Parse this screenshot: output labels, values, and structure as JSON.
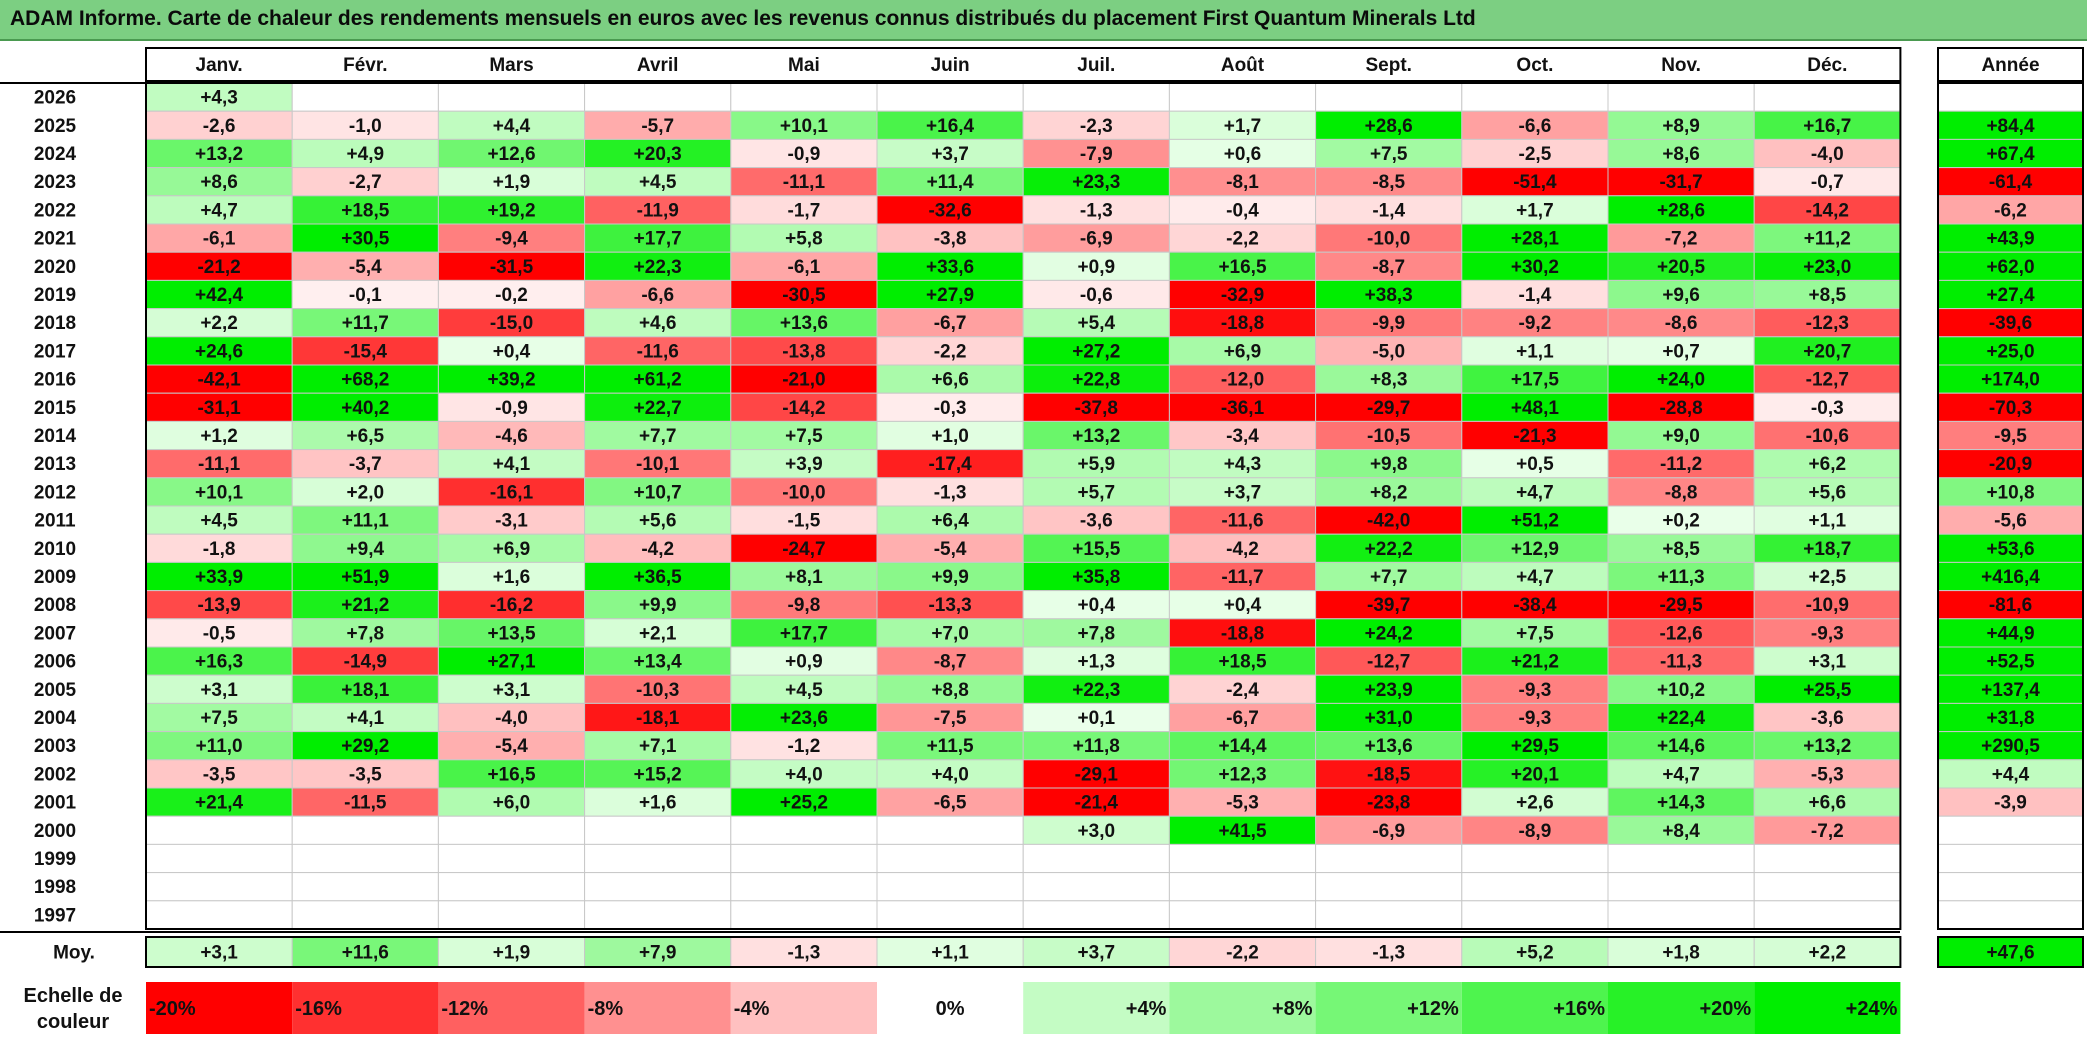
{
  "title": "ADAM Informe. Carte de chaleur des rendements mensuels en euros avec les revenus connus distribués du placement First Quantum Minerals Ltd",
  "chart_data": {
    "type": "heatmap",
    "title": "ADAM Informe. Carte de chaleur des rendements mensuels en euros avec les revenus connus distribués du placement First Quantum Minerals Ltd",
    "columns": [
      "Janv.",
      "Févr.",
      "Mars",
      "Avril",
      "Mai",
      "Juin",
      "Juil.",
      "Août",
      "Sept.",
      "Oct.",
      "Nov.",
      "Déc."
    ],
    "year_column_label": "Année",
    "rows": [
      {
        "year": "2026",
        "values": [
          "+4,3",
          "",
          "",
          "",
          "",
          "",
          "",
          "",
          "",
          "",
          "",
          ""
        ],
        "annual": ""
      },
      {
        "year": "2025",
        "values": [
          "-2,6",
          "-1,0",
          "+4,4",
          "-5,7",
          "+10,1",
          "+16,4",
          "-2,3",
          "+1,7",
          "+28,6",
          "-6,6",
          "+8,9",
          "+16,7"
        ],
        "annual": "+84,4"
      },
      {
        "year": "2024",
        "values": [
          "+13,2",
          "+4,9",
          "+12,6",
          "+20,3",
          "-0,9",
          "+3,7",
          "-7,9",
          "+0,6",
          "+7,5",
          "-2,5",
          "+8,6",
          "-4,0"
        ],
        "annual": "+67,4"
      },
      {
        "year": "2023",
        "values": [
          "+8,6",
          "-2,7",
          "+1,9",
          "+4,5",
          "-11,1",
          "+11,4",
          "+23,3",
          "-8,1",
          "-8,5",
          "-51,4",
          "-31,7",
          "-0,7"
        ],
        "annual": "-61,4"
      },
      {
        "year": "2022",
        "values": [
          "+4,7",
          "+18,5",
          "+19,2",
          "-11,9",
          "-1,7",
          "-32,6",
          "-1,3",
          "-0,4",
          "-1,4",
          "+1,7",
          "+28,6",
          "-14,2"
        ],
        "annual": "-6,2"
      },
      {
        "year": "2021",
        "values": [
          "-6,1",
          "+30,5",
          "-9,4",
          "+17,7",
          "+5,8",
          "-3,8",
          "-6,9",
          "-2,2",
          "-10,0",
          "+28,1",
          "-7,2",
          "+11,2"
        ],
        "annual": "+43,9"
      },
      {
        "year": "2020",
        "values": [
          "-21,2",
          "-5,4",
          "-31,5",
          "+22,3",
          "-6,1",
          "+33,6",
          "+0,9",
          "+16,5",
          "-8,7",
          "+30,2",
          "+20,5",
          "+23,0"
        ],
        "annual": "+62,0"
      },
      {
        "year": "2019",
        "values": [
          "+42,4",
          "-0,1",
          "-0,2",
          "-6,6",
          "-30,5",
          "+27,9",
          "-0,6",
          "-32,9",
          "+38,3",
          "-1,4",
          "+9,6",
          "+8,5"
        ],
        "annual": "+27,4"
      },
      {
        "year": "2018",
        "values": [
          "+2,2",
          "+11,7",
          "-15,0",
          "+4,6",
          "+13,6",
          "-6,7",
          "+5,4",
          "-18,8",
          "-9,9",
          "-9,2",
          "-8,6",
          "-12,3"
        ],
        "annual": "-39,6"
      },
      {
        "year": "2017",
        "values": [
          "+24,6",
          "-15,4",
          "+0,4",
          "-11,6",
          "-13,8",
          "-2,2",
          "+27,2",
          "+6,9",
          "-5,0",
          "+1,1",
          "+0,7",
          "+20,7"
        ],
        "annual": "+25,0"
      },
      {
        "year": "2016",
        "values": [
          "-42,1",
          "+68,2",
          "+39,2",
          "+61,2",
          "-21,0",
          "+6,6",
          "+22,8",
          "-12,0",
          "+8,3",
          "+17,5",
          "+24,0",
          "-12,7"
        ],
        "annual": "+174,0"
      },
      {
        "year": "2015",
        "values": [
          "-31,1",
          "+40,2",
          "-0,9",
          "+22,7",
          "-14,2",
          "-0,3",
          "-37,8",
          "-36,1",
          "-29,7",
          "+48,1",
          "-28,8",
          "-0,3"
        ],
        "annual": "-70,3"
      },
      {
        "year": "2014",
        "values": [
          "+1,2",
          "+6,5",
          "-4,6",
          "+7,7",
          "+7,5",
          "+1,0",
          "+13,2",
          "-3,4",
          "-10,5",
          "-21,3",
          "+9,0",
          "-10,6"
        ],
        "annual": "-9,5"
      },
      {
        "year": "2013",
        "values": [
          "-11,1",
          "-3,7",
          "+4,1",
          "-10,1",
          "+3,9",
          "-17,4",
          "+5,9",
          "+4,3",
          "+9,8",
          "+0,5",
          "-11,2",
          "+6,2"
        ],
        "annual": "-20,9"
      },
      {
        "year": "2012",
        "values": [
          "+10,1",
          "+2,0",
          "-16,1",
          "+10,7",
          "-10,0",
          "-1,3",
          "+5,7",
          "+3,7",
          "+8,2",
          "+4,7",
          "-8,8",
          "+5,6"
        ],
        "annual": "+10,8"
      },
      {
        "year": "2011",
        "values": [
          "+4,5",
          "+11,1",
          "-3,1",
          "+5,6",
          "-1,5",
          "+6,4",
          "-3,6",
          "-11,6",
          "-42,0",
          "+51,2",
          "+0,2",
          "+1,1"
        ],
        "annual": "-5,6"
      },
      {
        "year": "2010",
        "values": [
          "-1,8",
          "+9,4",
          "+6,9",
          "-4,2",
          "-24,7",
          "-5,4",
          "+15,5",
          "-4,2",
          "+22,2",
          "+12,9",
          "+8,5",
          "+18,7"
        ],
        "annual": "+53,6"
      },
      {
        "year": "2009",
        "values": [
          "+33,9",
          "+51,9",
          "+1,6",
          "+36,5",
          "+8,1",
          "+9,9",
          "+35,8",
          "-11,7",
          "+7,7",
          "+4,7",
          "+11,3",
          "+2,5"
        ],
        "annual": "+416,4"
      },
      {
        "year": "2008",
        "values": [
          "-13,9",
          "+21,2",
          "-16,2",
          "+9,9",
          "-9,8",
          "-13,3",
          "+0,4",
          "+0,4",
          "-39,7",
          "-38,4",
          "-29,5",
          "-10,9"
        ],
        "annual": "-81,6"
      },
      {
        "year": "2007",
        "values": [
          "-0,5",
          "+7,8",
          "+13,5",
          "+2,1",
          "+17,7",
          "+7,0",
          "+7,8",
          "-18,8",
          "+24,2",
          "+7,5",
          "-12,6",
          "-9,3"
        ],
        "annual": "+44,9"
      },
      {
        "year": "2006",
        "values": [
          "+16,3",
          "-14,9",
          "+27,1",
          "+13,4",
          "+0,9",
          "-8,7",
          "+1,3",
          "+18,5",
          "-12,7",
          "+21,2",
          "-11,3",
          "+3,1"
        ],
        "annual": "+52,5"
      },
      {
        "year": "2005",
        "values": [
          "+3,1",
          "+18,1",
          "+3,1",
          "-10,3",
          "+4,5",
          "+8,8",
          "+22,3",
          "-2,4",
          "+23,9",
          "-9,3",
          "+10,2",
          "+25,5"
        ],
        "annual": "+137,4"
      },
      {
        "year": "2004",
        "values": [
          "+7,5",
          "+4,1",
          "-4,0",
          "-18,1",
          "+23,6",
          "-7,5",
          "+0,1",
          "-6,7",
          "+31,0",
          "-9,3",
          "+22,4",
          "-3,6"
        ],
        "annual": "+31,8"
      },
      {
        "year": "2003",
        "values": [
          "+11,0",
          "+29,2",
          "-5,4",
          "+7,1",
          "-1,2",
          "+11,5",
          "+11,8",
          "+14,4",
          "+13,6",
          "+29,5",
          "+14,6",
          "+13,2"
        ],
        "annual": "+290,5"
      },
      {
        "year": "2002",
        "values": [
          "-3,5",
          "-3,5",
          "+16,5",
          "+15,2",
          "+4,0",
          "+4,0",
          "-29,1",
          "+12,3",
          "-18,5",
          "+20,1",
          "+4,7",
          "-5,3"
        ],
        "annual": "+4,4"
      },
      {
        "year": "2001",
        "values": [
          "+21,4",
          "-11,5",
          "+6,0",
          "+1,6",
          "+25,2",
          "-6,5",
          "-21,4",
          "-5,3",
          "-23,8",
          "+2,6",
          "+14,3",
          "+6,6"
        ],
        "annual": "-3,9"
      },
      {
        "year": "2000",
        "values": [
          "",
          "",
          "",
          "",
          "",
          "",
          "+3,0",
          "+41,5",
          "-6,9",
          "-8,9",
          "+8,4",
          "-7,2"
        ],
        "annual": ""
      },
      {
        "year": "1999",
        "values": [
          "",
          "",
          "",
          "",
          "",
          "",
          "",
          "",
          "",
          "",
          "",
          ""
        ],
        "annual": ""
      },
      {
        "year": "1998",
        "values": [
          "",
          "",
          "",
          "",
          "",
          "",
          "",
          "",
          "",
          "",
          "",
          ""
        ],
        "annual": ""
      },
      {
        "year": "1997",
        "values": [
          "",
          "",
          "",
          "",
          "",
          "",
          "",
          "",
          "",
          "",
          "",
          ""
        ],
        "annual": ""
      }
    ],
    "average": {
      "label": "Moy.",
      "values": [
        "+3,1",
        "+11,6",
        "+1,9",
        "+7,9",
        "-1,3",
        "+1,1",
        "+3,7",
        "-2,2",
        "-1,3",
        "+5,2",
        "+1,8",
        "+2,2"
      ],
      "annual": "+47,6"
    },
    "legend": {
      "label": "Echelle de couleur",
      "items": [
        "-20%",
        "-16%",
        "-12%",
        "-8%",
        "-4%",
        "0%",
        "+4%",
        "+8%",
        "+12%",
        "+16%",
        "+20%",
        "+24%"
      ],
      "levels": [
        -20,
        -16,
        -12,
        -8,
        -4,
        0,
        4,
        8,
        12,
        16,
        20,
        24
      ]
    },
    "colors": {
      "negative": "#ff0000",
      "positive": "#00ee00",
      "neutral": "#ffffff",
      "title_bar": "#7ccf82"
    }
  }
}
